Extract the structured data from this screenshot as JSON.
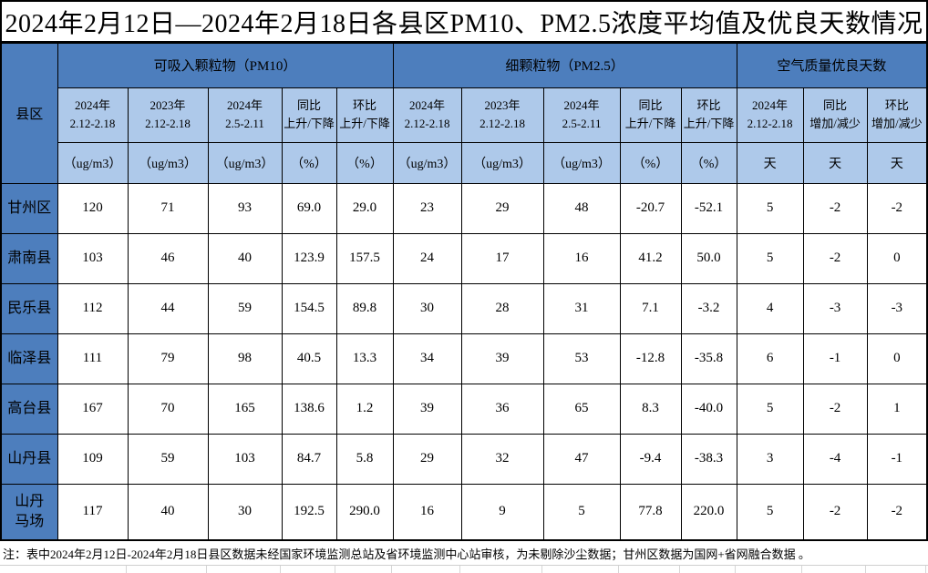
{
  "title": "2024年2月12日—2024年2月18日各县区PM10、PM2.5浓度平均值及优良天数情况",
  "table": {
    "corner_label": "县区",
    "groups": [
      {
        "label": "可吸入颗粒物（PM10）"
      },
      {
        "label": "细颗粒物（PM2.5）"
      },
      {
        "label": "空气质量优良天数"
      }
    ],
    "period_headers": [
      "2024年\n2.12-2.18",
      "2023年\n2.12-2.18",
      "2024年\n2.5-2.11",
      "同比\n上升/下降",
      "环比\n上升/下降",
      "2024年\n2.12-2.18",
      "2023年\n2.12-2.18",
      "2024年\n2.5-2.11",
      "同比\n上升/下降",
      "环比\n上升/下降",
      "2024年\n2.12-2.18",
      "同比\n增加/减少",
      "环比\n增加/减少"
    ],
    "unit_headers": [
      "（ug/m3）",
      "（ug/m3）",
      "（ug/m3）",
      "（%）",
      "（%）",
      "（ug/m3）",
      "（ug/m3）",
      "（ug/m3）",
      "（%）",
      "（%）",
      "天",
      "天",
      "天"
    ],
    "rows": [
      {
        "name": "甘州区",
        "values": [
          "120",
          "71",
          "93",
          "69.0",
          "29.0",
          "23",
          "29",
          "48",
          "-20.7",
          "-52.1",
          "5",
          "-2",
          "-2"
        ]
      },
      {
        "name": "肃南县",
        "values": [
          "103",
          "46",
          "40",
          "123.9",
          "157.5",
          "24",
          "17",
          "16",
          "41.2",
          "50.0",
          "5",
          "-2",
          "0"
        ]
      },
      {
        "name": "民乐县",
        "values": [
          "112",
          "44",
          "59",
          "154.5",
          "89.8",
          "30",
          "28",
          "31",
          "7.1",
          "-3.2",
          "4",
          "-3",
          "-3"
        ]
      },
      {
        "name": "临泽县",
        "values": [
          "111",
          "79",
          "98",
          "40.5",
          "13.3",
          "34",
          "39",
          "53",
          "-12.8",
          "-35.8",
          "6",
          "-1",
          "0"
        ]
      },
      {
        "name": "高台县",
        "values": [
          "167",
          "70",
          "165",
          "138.6",
          "1.2",
          "39",
          "36",
          "65",
          "8.3",
          "-40.0",
          "5",
          "-2",
          "1"
        ]
      },
      {
        "name": "山丹县",
        "values": [
          "109",
          "59",
          "103",
          "84.7",
          "5.8",
          "29",
          "32",
          "47",
          "-9.4",
          "-38.3",
          "3",
          "-4",
          "-1"
        ]
      },
      {
        "name": "山丹\n马场",
        "values": [
          "117",
          "40",
          "30",
          "192.5",
          "290.0",
          "16",
          "9",
          "5",
          "77.8",
          "220.0",
          "5",
          "-2",
          "-2"
        ]
      }
    ]
  },
  "note": "注：表中2024年2月12日-2024年2月18日县区数据未经国家环境监测总站及省环境监测中心站审核，为未剔除沙尘数据；甘州区数据为国网+省网融合数据 。",
  "colors": {
    "header_blue": "#4d7ebd",
    "subheader_blue": "#aec9ea",
    "grid_black": "#000000",
    "ghost_grid_gray": "#d6d6d6"
  }
}
